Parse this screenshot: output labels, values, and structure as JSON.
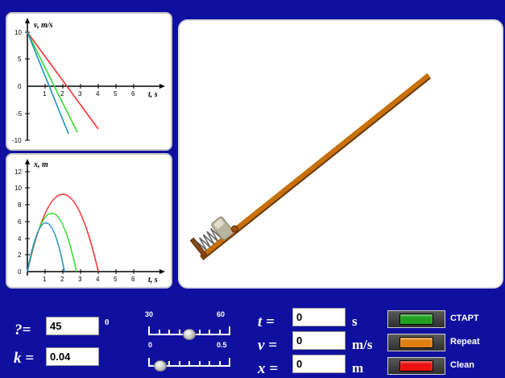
{
  "graph_v": {
    "y_axis_label": "v,  m/s",
    "x_axis_label": "t,  s",
    "x_ticks": [
      "1",
      "2",
      "3",
      "4",
      "5",
      "6"
    ],
    "y_ticks": [
      "10",
      "5",
      "0",
      "-5",
      "-10"
    ],
    "series_colors": [
      "#ff3030",
      "#30e030",
      "#2090c0"
    ]
  },
  "graph_x": {
    "y_axis_label": "x,  m",
    "x_axis_label": "t,  s",
    "x_ticks": [
      "0",
      "1",
      "2",
      "3",
      "4",
      "5",
      "6"
    ],
    "y_ticks": [
      "12",
      "10",
      "8",
      "6",
      "4",
      "2"
    ],
    "series_colors": [
      "#ff3030",
      "#30e030",
      "#2090c0"
    ]
  },
  "params": {
    "angle_label": "?=",
    "angle_value": "45",
    "angle_unit": "0",
    "k_label": "k =",
    "k_value": "0.04"
  },
  "slider_angle": {
    "min_label": "30",
    "max_label": "60",
    "value": 45
  },
  "slider_k": {
    "min_label": "0",
    "max_label": "0.5",
    "value": 0.04
  },
  "readouts": {
    "t_label": "t =",
    "t_value": "0",
    "t_unit": "s",
    "v_label": "v =",
    "v_value": "0",
    "v_unit": "m/s",
    "x_label": "x =",
    "x_value": "0",
    "x_unit": "m"
  },
  "buttons": {
    "start_label": "СТАРТ",
    "start_color": "#20a020",
    "repeat_label": "Repeat",
    "repeat_color": "#e08010",
    "clean_label": "Clean",
    "clean_color": "#ee1010"
  },
  "colors": {
    "background": "#1010a0",
    "rail": "#c8700c"
  }
}
